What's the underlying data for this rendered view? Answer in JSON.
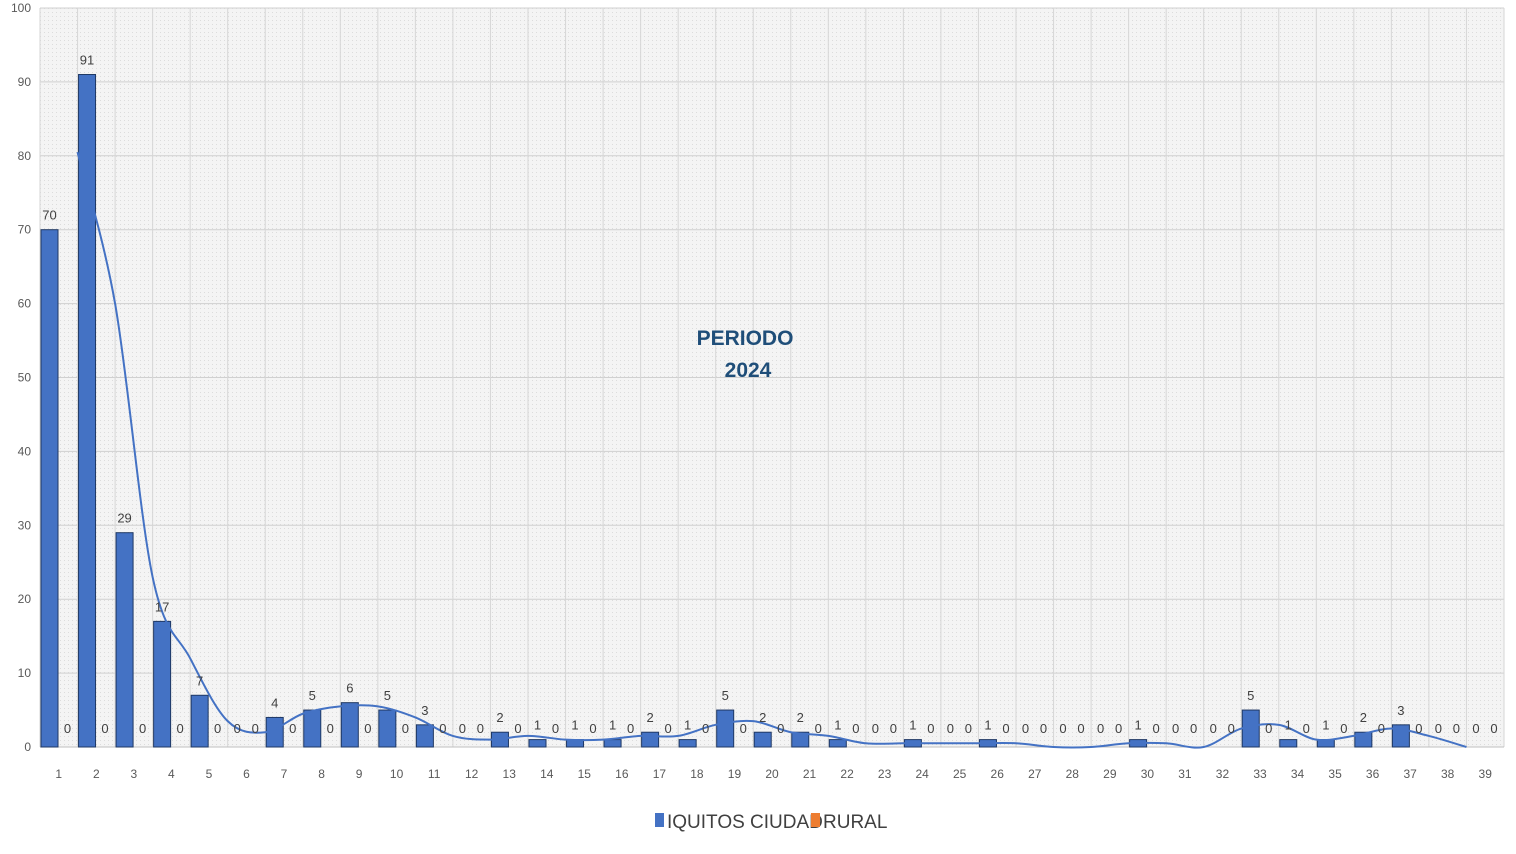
{
  "chart_data": {
    "type": "bar",
    "categories": [
      "1",
      "2",
      "3",
      "4",
      "5",
      "6",
      "7",
      "8",
      "9",
      "10",
      "11",
      "12",
      "13",
      "14",
      "15",
      "16",
      "17",
      "18",
      "19",
      "20",
      "21",
      "22",
      "23",
      "24",
      "25",
      "26",
      "27",
      "28",
      "29",
      "30",
      "31",
      "32",
      "33",
      "34",
      "35",
      "36",
      "37",
      "38",
      "39"
    ],
    "series": [
      {
        "name": "IQUITOS CIUDAD",
        "color": "#4472C4",
        "values": [
          70,
          91,
          29,
          17,
          7,
          0,
          4,
          5,
          6,
          5,
          3,
          0,
          2,
          1,
          1,
          1,
          2,
          1,
          5,
          2,
          2,
          1,
          0,
          1,
          0,
          1,
          0,
          0,
          0,
          1,
          0,
          0,
          5,
          1,
          1,
          2,
          3,
          0,
          0
        ]
      },
      {
        "name": "RURAL",
        "color": "#ED7D31",
        "values": [
          0,
          0,
          0,
          0,
          0,
          0,
          0,
          0,
          0,
          0,
          0,
          0,
          0,
          0,
          0,
          0,
          0,
          0,
          0,
          0,
          0,
          0,
          0,
          0,
          0,
          0,
          0,
          0,
          0,
          0,
          0,
          0,
          0,
          0,
          0,
          0,
          0,
          0,
          0
        ]
      }
    ],
    "trendline": {
      "type": "moving-average",
      "color": "#4472C4"
    },
    "annotation": [
      "PERIODO",
      "2024"
    ],
    "ylim": [
      0,
      100
    ],
    "yticks": [
      0,
      10,
      20,
      30,
      40,
      50,
      60,
      70,
      80,
      90,
      100
    ],
    "grid": true,
    "legend_position": "bottom",
    "xlabel": "",
    "ylabel": "",
    "title": ""
  }
}
